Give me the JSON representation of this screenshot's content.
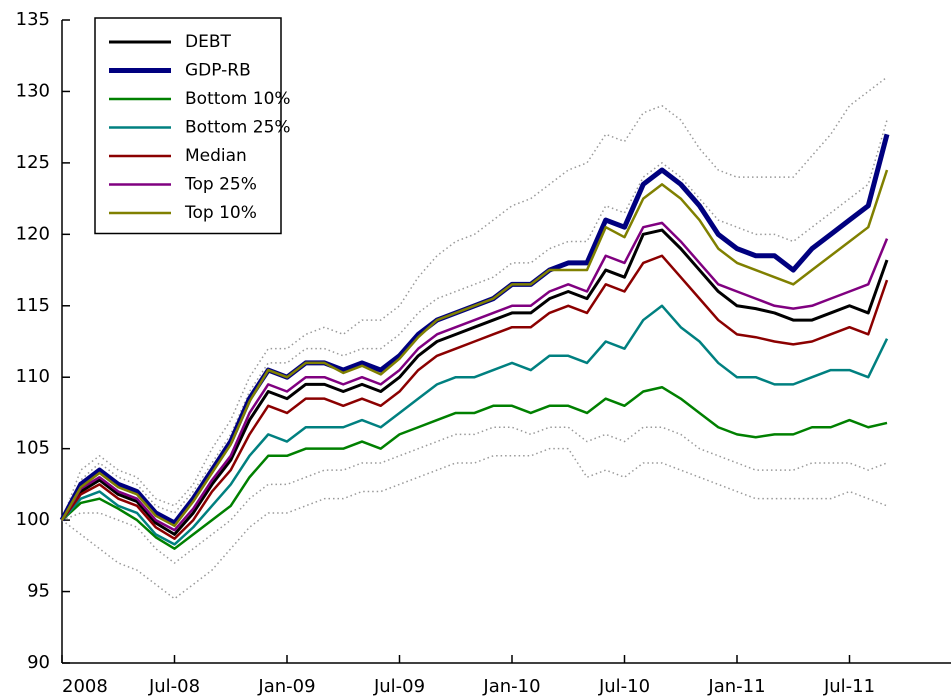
{
  "chart_data": {
    "type": "line",
    "categories": [
      "2008",
      null,
      null,
      null,
      null,
      null,
      "Jul-08",
      null,
      null,
      null,
      null,
      null,
      "Jan-09",
      null,
      null,
      null,
      null,
      null,
      "Jul-09",
      null,
      null,
      null,
      null,
      null,
      "Jan-10",
      null,
      null,
      null,
      null,
      null,
      "Jul-10",
      null,
      null,
      null,
      null,
      null,
      "Jan-11",
      null,
      null,
      null,
      null,
      null,
      "Jul-11",
      null,
      null
    ],
    "ylim": [
      90,
      135
    ],
    "yticks": [
      90,
      95,
      100,
      105,
      110,
      115,
      120,
      125,
      130,
      135
    ],
    "legend": "upper left",
    "series": [
      {
        "name": "DEBT",
        "color": "#000000",
        "width": 3,
        "values": [
          100,
          102,
          102.8,
          101.8,
          101.3,
          99.8,
          99,
          100.5,
          102.5,
          104.2,
          107,
          109,
          108.5,
          109.5,
          109.5,
          109,
          109.5,
          109,
          110,
          111.5,
          112.5,
          113,
          113.5,
          114,
          114.5,
          114.5,
          115.5,
          116,
          115.5,
          117.5,
          117,
          120,
          120.3,
          119,
          117.5,
          116,
          115,
          114.8,
          114.5,
          114,
          114,
          114.5,
          115,
          114.5,
          118.2
        ]
      },
      {
        "name": "GDP-RB",
        "color": "#00007f",
        "width": 5,
        "values": [
          100,
          102.5,
          103.5,
          102.5,
          102,
          100.5,
          99.8,
          101.5,
          103.5,
          105.5,
          108.5,
          110.5,
          110,
          111,
          111,
          110.5,
          111,
          110.5,
          111.5,
          113,
          114,
          114.5,
          115,
          115.5,
          116.5,
          116.5,
          117.5,
          118,
          118,
          121,
          120.5,
          123.5,
          124.5,
          123.5,
          122,
          120,
          119,
          118.5,
          118.5,
          117.5,
          119,
          120,
          121,
          122,
          127
        ]
      },
      {
        "name": "Bottom 10%",
        "color": "#008000",
        "width": 2.5,
        "values": [
          100,
          101.2,
          101.5,
          100.8,
          100,
          98.8,
          98,
          99,
          100,
          101,
          103,
          104.5,
          104.5,
          105,
          105,
          105,
          105.5,
          105,
          106,
          106.5,
          107,
          107.5,
          107.5,
          108,
          108,
          107.5,
          108,
          108,
          107.5,
          108.5,
          108,
          109,
          109.3,
          108.5,
          107.5,
          106.5,
          106,
          105.8,
          106,
          106,
          106.5,
          106.5,
          107,
          106.5,
          106.8
        ]
      },
      {
        "name": "Bottom 25%",
        "color": "#008080",
        "width": 2.5,
        "values": [
          100,
          101.5,
          102,
          101,
          100.5,
          99,
          98.3,
          99.5,
          101,
          102.5,
          104.5,
          106,
          105.5,
          106.5,
          106.5,
          106.5,
          107,
          106.5,
          107.5,
          108.5,
          109.5,
          110,
          110,
          110.5,
          111,
          110.5,
          111.5,
          111.5,
          111,
          112.5,
          112,
          114,
          115,
          113.5,
          112.5,
          111,
          110,
          110,
          109.5,
          109.5,
          110,
          110.5,
          110.5,
          110,
          112.7
        ]
      },
      {
        "name": "Median",
        "color": "#8b0000",
        "width": 2.5,
        "values": [
          100,
          101.8,
          102.5,
          101.5,
          101,
          99.5,
          98.7,
          100,
          102,
          103.5,
          106,
          108,
          107.5,
          108.5,
          108.5,
          108,
          108.5,
          108,
          109,
          110.5,
          111.5,
          112,
          112.5,
          113,
          113.5,
          113.5,
          114.5,
          115,
          114.5,
          116.5,
          116,
          118,
          118.5,
          117,
          115.5,
          114,
          113,
          112.8,
          112.5,
          112.3,
          112.5,
          113,
          113.5,
          113,
          116.8
        ]
      },
      {
        "name": "Top 25%",
        "color": "#800080",
        "width": 2.5,
        "values": [
          100,
          102.2,
          103,
          102,
          101.5,
          100,
          99.3,
          100.8,
          102.8,
          104.5,
          107.5,
          109.5,
          109,
          110,
          110,
          109.5,
          110,
          109.5,
          110.5,
          112,
          113,
          113.5,
          114,
          114.5,
          115,
          115,
          116,
          116.5,
          116,
          118.5,
          118,
          120.5,
          120.8,
          119.5,
          118,
          116.5,
          116,
          115.5,
          115,
          114.8,
          115,
          115.5,
          116,
          116.5,
          119.7
        ]
      },
      {
        "name": "Top 10%",
        "color": "#808000",
        "width": 2.5,
        "values": [
          100,
          102.3,
          103.3,
          102.3,
          101.8,
          100.3,
          99.6,
          101.3,
          103.3,
          105.3,
          108.3,
          110.5,
          110,
          111,
          111,
          110.3,
          110.8,
          110.2,
          111.3,
          112.8,
          114,
          114.5,
          115,
          115.5,
          116.5,
          116.5,
          117.5,
          117.5,
          117.5,
          120.5,
          119.8,
          122.5,
          123.5,
          122.5,
          121,
          119,
          118,
          117.5,
          117,
          116.5,
          117.5,
          118.5,
          119.5,
          120.5,
          124.5
        ]
      },
      {
        "color": "#999999",
        "width": 1.5,
        "dash": "dotted",
        "values": [
          100,
          103.5,
          104.5,
          103.5,
          103,
          101.5,
          101,
          102.5,
          105,
          107,
          110,
          112,
          112,
          113,
          113.5,
          113,
          114,
          114,
          115,
          117,
          118.5,
          119.5,
          120,
          121,
          122,
          122.5,
          123.5,
          124.5,
          125,
          127,
          126.5,
          128.5,
          129,
          128,
          126,
          124.5,
          124,
          124,
          124,
          124,
          125.5,
          127,
          129,
          130,
          131
        ]
      },
      {
        "color": "#999999",
        "width": 1.5,
        "dash": "dotted",
        "values": [
          100,
          99,
          98,
          97,
          96.5,
          95.5,
          94.5,
          95.5,
          96.5,
          98,
          99.5,
          100.5,
          100.5,
          101,
          101.5,
          101.5,
          102,
          102,
          102.5,
          103,
          103.5,
          104,
          104,
          104.5,
          104.5,
          104.5,
          105,
          105,
          103,
          103.5,
          103,
          104,
          104,
          103.5,
          103,
          102.5,
          102,
          101.5,
          101.5,
          101.5,
          101.5,
          101.5,
          102,
          101.5,
          101
        ]
      },
      {
        "color": "#999999",
        "width": 1.5,
        "dash": "dotted",
        "values": [
          100,
          102.8,
          104,
          103,
          102.5,
          101,
          100.5,
          102,
          104,
          106,
          109,
          111,
          111,
          112,
          112,
          111.5,
          112,
          112,
          113,
          114.5,
          115.5,
          116,
          116.5,
          117,
          118,
          118,
          119,
          119.5,
          119.5,
          122,
          121.5,
          124,
          125,
          124,
          122.5,
          121,
          120.5,
          120,
          120,
          119.5,
          120.5,
          121.5,
          122.5,
          123.5,
          128
        ]
      },
      {
        "color": "#999999",
        "width": 1.5,
        "dash": "dotted",
        "values": [
          100,
          100.5,
          100.5,
          100,
          99.5,
          98,
          97,
          98,
          99,
          100,
          101.5,
          102.5,
          102.5,
          103,
          103.5,
          103.5,
          104,
          104,
          104.5,
          105,
          105.5,
          106,
          106,
          106.5,
          106.5,
          106,
          106.5,
          106.5,
          105.5,
          106,
          105.5,
          106.5,
          106.5,
          106,
          105,
          104.5,
          104,
          103.5,
          103.5,
          103.5,
          104,
          104,
          104,
          103.5,
          104
        ]
      }
    ]
  }
}
